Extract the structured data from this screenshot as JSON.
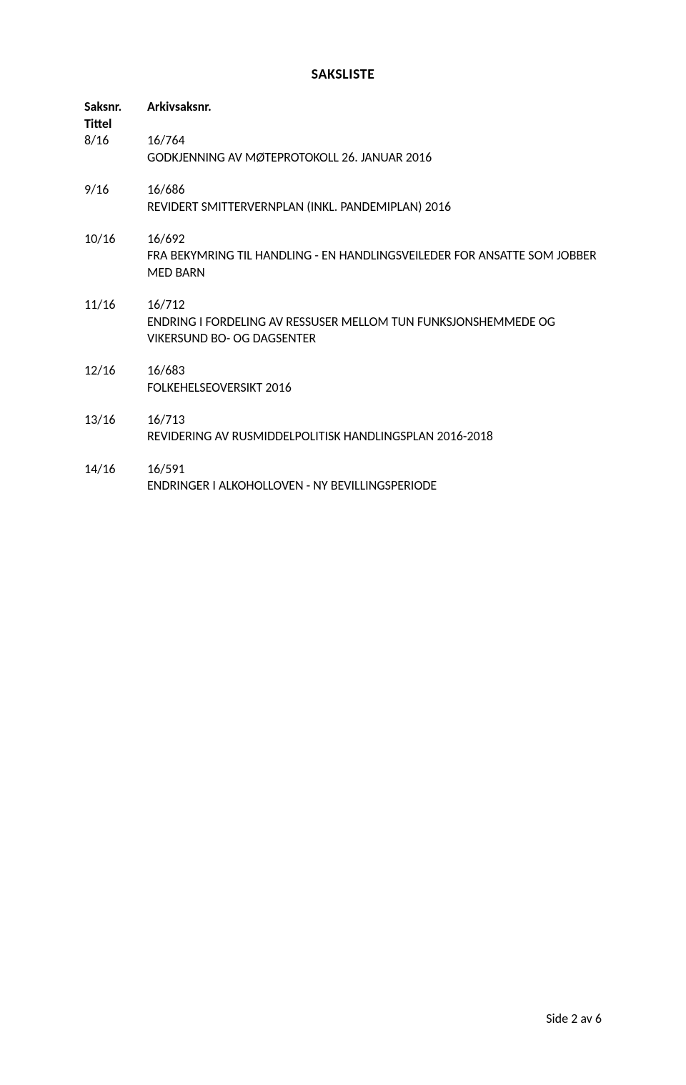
{
  "page": {
    "title": "SAKSLISTE",
    "footer": "Side 2 av 6",
    "headers": {
      "saksnr": "Saksnr.",
      "arkiv": "Arkivsaksnr.",
      "tittel": "Tittel"
    }
  },
  "entries": [
    {
      "saksnr": "8/16",
      "arkiv": "16/764",
      "desc": "GODKJENNING AV MØTEPROTOKOLL 26. JANUAR 2016"
    },
    {
      "saksnr": "9/16",
      "arkiv": "16/686",
      "desc": "REVIDERT SMITTERVERNPLAN (INKL. PANDEMIPLAN) 2016"
    },
    {
      "saksnr": "10/16",
      "arkiv": "16/692",
      "desc": "FRA BEKYMRING TIL HANDLING - EN HANDLINGSVEILEDER FOR ANSATTE SOM JOBBER MED BARN"
    },
    {
      "saksnr": "11/16",
      "arkiv": "16/712",
      "desc": "ENDRING I FORDELING AV RESSUSER MELLOM TUN FUNKSJONSHEMMEDE OG VIKERSUND BO- OG DAGSENTER"
    },
    {
      "saksnr": "12/16",
      "arkiv": "16/683",
      "desc": "FOLKEHELSEOVERSIKT 2016"
    },
    {
      "saksnr": "13/16",
      "arkiv": "16/713",
      "desc": "REVIDERING AV RUSMIDDELPOLITISK HANDLINGSPLAN 2016-2018"
    },
    {
      "saksnr": "14/16",
      "arkiv": "16/591",
      "desc": "ENDRINGER I ALKOHOLLOVEN - NY BEVILLINGSPERIODE"
    }
  ]
}
